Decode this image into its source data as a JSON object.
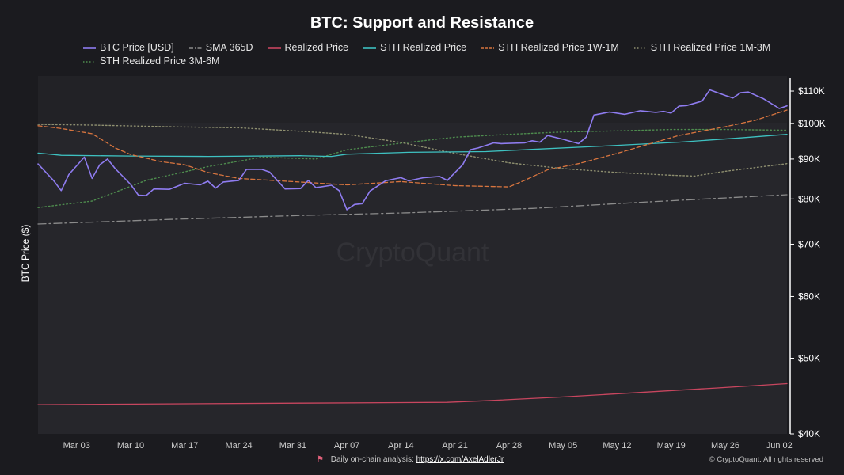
{
  "footer": {
    "analysis_label": "Daily on-chain analysis:",
    "link_text": "https://x.com/AxelAdlerJr",
    "copyright": "© CryptoQuant. All rights reserved"
  },
  "watermark": "CryptoQuant",
  "colors": {
    "background": "#1b1b1f",
    "plot_background": "#26262b",
    "btc_price": "#8f7cf0",
    "sma_365d": "#8b8b8b",
    "realized_price": "#c8465f",
    "sth_realized": "#3ec1c1",
    "sth_1w_1m": "#d8753f",
    "sth_1m_3m": "#8f9070",
    "sth_3m_6m": "#4e8c4e"
  },
  "chart_data": {
    "type": "line",
    "title": "BTC: Support and Resistance",
    "ylabel": "BTC Price ($)",
    "xlabel": "",
    "yscale": "log",
    "ylim": [
      40000,
      115000
    ],
    "x_range": [
      "2025-02-26",
      "2025-06-03"
    ],
    "legend_position": "top",
    "y_ticks": [
      {
        "value": 40000,
        "label": "$40K"
      },
      {
        "value": 50000,
        "label": "$50K"
      },
      {
        "value": 60000,
        "label": "$60K"
      },
      {
        "value": 70000,
        "label": "$70K"
      },
      {
        "value": 80000,
        "label": "$80K"
      },
      {
        "value": 90000,
        "label": "$90K"
      },
      {
        "value": 100000,
        "label": "$100K"
      },
      {
        "value": 110000,
        "label": "$110K"
      }
    ],
    "x_ticks": [
      {
        "date": "2025-03-03",
        "label": "Mar 03"
      },
      {
        "date": "2025-03-10",
        "label": "Mar 10"
      },
      {
        "date": "2025-03-17",
        "label": "Mar 17"
      },
      {
        "date": "2025-03-24",
        "label": "Mar 24"
      },
      {
        "date": "2025-03-31",
        "label": "Mar 31"
      },
      {
        "date": "2025-04-07",
        "label": "Apr 07"
      },
      {
        "date": "2025-04-14",
        "label": "Apr 14"
      },
      {
        "date": "2025-04-21",
        "label": "Apr 21"
      },
      {
        "date": "2025-04-28",
        "label": "Apr 28"
      },
      {
        "date": "2025-05-05",
        "label": "May 05"
      },
      {
        "date": "2025-05-12",
        "label": "May 12"
      },
      {
        "date": "2025-05-19",
        "label": "May 19"
      },
      {
        "date": "2025-05-26",
        "label": "May 26"
      },
      {
        "date": "2025-06-02",
        "label": "Jun 02"
      }
    ],
    "series": [
      {
        "name": "BTC Price [USD]",
        "key": "btc_price",
        "style": "solid",
        "points": [
          [
            "2025-02-26",
            88700
          ],
          [
            "2025-02-28",
            84500
          ],
          [
            "2025-03-01",
            82000
          ],
          [
            "2025-03-02",
            86000
          ],
          [
            "2025-03-04",
            90500
          ],
          [
            "2025-03-05",
            85000
          ],
          [
            "2025-03-06",
            88500
          ],
          [
            "2025-03-07",
            90000
          ],
          [
            "2025-03-08",
            87500
          ],
          [
            "2025-03-10",
            83500
          ],
          [
            "2025-03-11",
            80900
          ],
          [
            "2025-03-12",
            80800
          ],
          [
            "2025-03-13",
            82400
          ],
          [
            "2025-03-15",
            82300
          ],
          [
            "2025-03-17",
            83800
          ],
          [
            "2025-03-19",
            83400
          ],
          [
            "2025-03-20",
            84300
          ],
          [
            "2025-03-21",
            82600
          ],
          [
            "2025-03-22",
            84100
          ],
          [
            "2025-03-24",
            84500
          ],
          [
            "2025-03-25",
            87300
          ],
          [
            "2025-03-27",
            87300
          ],
          [
            "2025-03-28",
            86600
          ],
          [
            "2025-03-30",
            82400
          ],
          [
            "2025-04-01",
            82500
          ],
          [
            "2025-04-02",
            84500
          ],
          [
            "2025-04-03",
            82700
          ],
          [
            "2025-04-05",
            83300
          ],
          [
            "2025-04-06",
            82000
          ],
          [
            "2025-04-07",
            77500
          ],
          [
            "2025-04-08",
            78700
          ],
          [
            "2025-04-09",
            78900
          ],
          [
            "2025-04-10",
            81900
          ],
          [
            "2025-04-12",
            84400
          ],
          [
            "2025-04-14",
            85200
          ],
          [
            "2025-04-15",
            84400
          ],
          [
            "2025-04-17",
            85200
          ],
          [
            "2025-04-19",
            85500
          ],
          [
            "2025-04-20",
            84500
          ],
          [
            "2025-04-22",
            88500
          ],
          [
            "2025-04-23",
            92500
          ],
          [
            "2025-04-24",
            93000
          ],
          [
            "2025-04-26",
            94400
          ],
          [
            "2025-04-27",
            94200
          ],
          [
            "2025-04-30",
            94400
          ],
          [
            "2025-05-01",
            95000
          ],
          [
            "2025-05-02",
            94600
          ],
          [
            "2025-05-03",
            96500
          ],
          [
            "2025-05-05",
            95400
          ],
          [
            "2025-05-07",
            94200
          ],
          [
            "2025-05-08",
            96000
          ],
          [
            "2025-05-09",
            102500
          ],
          [
            "2025-05-11",
            103400
          ],
          [
            "2025-05-13",
            102700
          ],
          [
            "2025-05-15",
            103800
          ],
          [
            "2025-05-17",
            103300
          ],
          [
            "2025-05-18",
            103600
          ],
          [
            "2025-05-19",
            103100
          ],
          [
            "2025-05-20",
            105200
          ],
          [
            "2025-05-21",
            105400
          ],
          [
            "2025-05-23",
            106800
          ],
          [
            "2025-05-24",
            110400
          ],
          [
            "2025-05-26",
            108600
          ],
          [
            "2025-05-27",
            107800
          ],
          [
            "2025-05-28",
            109500
          ],
          [
            "2025-05-29",
            109700
          ],
          [
            "2025-05-31",
            107500
          ],
          [
            "2025-06-02",
            104500
          ],
          [
            "2025-06-03",
            105300
          ]
        ]
      },
      {
        "name": "SMA 365D",
        "key": "sma_365d",
        "style": "dashdot",
        "points": [
          [
            "2025-02-26",
            74300
          ],
          [
            "2025-03-15",
            75300
          ],
          [
            "2025-04-01",
            76200
          ],
          [
            "2025-04-15",
            76800
          ],
          [
            "2025-05-01",
            77800
          ],
          [
            "2025-05-15",
            79200
          ],
          [
            "2025-06-03",
            81000
          ]
        ]
      },
      {
        "name": "Realized Price",
        "key": "realized_price",
        "style": "solid",
        "points": [
          [
            "2025-02-26",
            43600
          ],
          [
            "2025-03-15",
            43700
          ],
          [
            "2025-04-01",
            43800
          ],
          [
            "2025-04-20",
            43900
          ],
          [
            "2025-04-25",
            44100
          ],
          [
            "2025-05-05",
            44600
          ],
          [
            "2025-05-15",
            45200
          ],
          [
            "2025-05-25",
            45800
          ],
          [
            "2025-06-03",
            46400
          ]
        ]
      },
      {
        "name": "STH Realized Price",
        "key": "sth_realized",
        "style": "solid",
        "points": [
          [
            "2025-02-26",
            91600
          ],
          [
            "2025-03-01",
            91000
          ],
          [
            "2025-03-10",
            90800
          ],
          [
            "2025-03-20",
            90700
          ],
          [
            "2025-04-01",
            90900
          ],
          [
            "2025-04-05",
            90700
          ],
          [
            "2025-04-07",
            91300
          ],
          [
            "2025-04-15",
            91800
          ],
          [
            "2025-04-25",
            92000
          ],
          [
            "2025-05-01",
            92600
          ],
          [
            "2025-05-10",
            93500
          ],
          [
            "2025-05-20",
            94600
          ],
          [
            "2025-05-28",
            95800
          ],
          [
            "2025-06-03",
            96800
          ]
        ]
      },
      {
        "name": "STH Realized Price 1W-1M",
        "key": "sth_1w_1m",
        "style": "dashed",
        "points": [
          [
            "2025-02-26",
            99300
          ],
          [
            "2025-03-01",
            98500
          ],
          [
            "2025-03-05",
            97000
          ],
          [
            "2025-03-08",
            93000
          ],
          [
            "2025-03-10",
            91200
          ],
          [
            "2025-03-14",
            89300
          ],
          [
            "2025-03-17",
            88500
          ],
          [
            "2025-03-20",
            86500
          ],
          [
            "2025-03-24",
            85000
          ],
          [
            "2025-03-31",
            84200
          ],
          [
            "2025-04-07",
            83400
          ],
          [
            "2025-04-14",
            84200
          ],
          [
            "2025-04-21",
            83200
          ],
          [
            "2025-04-28",
            82900
          ],
          [
            "2025-04-30",
            84500
          ],
          [
            "2025-05-03",
            87200
          ],
          [
            "2025-05-07",
            88800
          ],
          [
            "2025-05-12",
            91500
          ],
          [
            "2025-05-16",
            94000
          ],
          [
            "2025-05-20",
            96500
          ],
          [
            "2025-05-26",
            99000
          ],
          [
            "2025-05-30",
            101000
          ],
          [
            "2025-06-03",
            104000
          ]
        ]
      },
      {
        "name": "STH Realized Price 1M-3M",
        "key": "sth_1m_3m",
        "style": "dotted",
        "points": [
          [
            "2025-02-26",
            99700
          ],
          [
            "2025-03-05",
            99500
          ],
          [
            "2025-03-15",
            99000
          ],
          [
            "2025-03-24",
            98700
          ],
          [
            "2025-04-01",
            97700
          ],
          [
            "2025-04-07",
            96800
          ],
          [
            "2025-04-14",
            94500
          ],
          [
            "2025-04-21",
            91500
          ],
          [
            "2025-04-28",
            89000
          ],
          [
            "2025-05-05",
            87500
          ],
          [
            "2025-05-12",
            86500
          ],
          [
            "2025-05-19",
            85800
          ],
          [
            "2025-05-22",
            85600
          ],
          [
            "2025-05-26",
            86800
          ],
          [
            "2025-06-03",
            88800
          ]
        ]
      },
      {
        "name": "STH Realized Price 3M-6M",
        "key": "sth_3m_6m",
        "style": "dotted",
        "points": [
          [
            "2025-02-26",
            78000
          ],
          [
            "2025-03-05",
            79500
          ],
          [
            "2025-03-12",
            84500
          ],
          [
            "2025-03-20",
            88000
          ],
          [
            "2025-03-27",
            90500
          ],
          [
            "2025-04-03",
            90000
          ],
          [
            "2025-04-07",
            92500
          ],
          [
            "2025-04-14",
            94300
          ],
          [
            "2025-04-21",
            96000
          ],
          [
            "2025-04-28",
            96800
          ],
          [
            "2025-05-05",
            97500
          ],
          [
            "2025-05-12",
            97800
          ],
          [
            "2025-05-19",
            98200
          ],
          [
            "2025-05-26",
            98200
          ],
          [
            "2025-06-03",
            98000
          ]
        ]
      }
    ]
  }
}
